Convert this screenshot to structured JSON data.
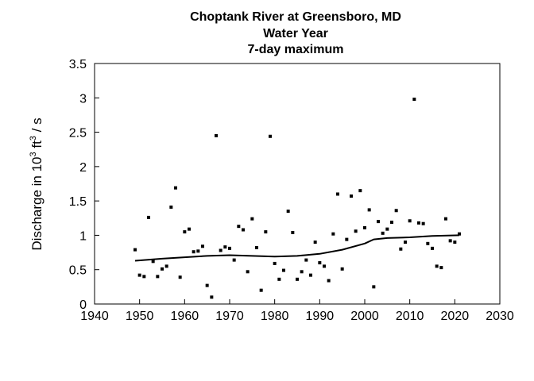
{
  "chart_data": {
    "type": "scatter",
    "title": "Choptank River at Greensboro, MD",
    "subtitle": "Water Year",
    "subtitle2": "7-day maximum",
    "xlabel": "",
    "ylabel": {
      "prefix": "Discharge in 10",
      "exponent": "3",
      "unit": " ft",
      "unit_exponent": "3",
      "suffix": " / s"
    },
    "xlim": [
      1940,
      2030
    ],
    "ylim": [
      0,
      3.5
    ],
    "xticks": [
      1940,
      1950,
      1960,
      1970,
      1980,
      1990,
      2000,
      2010,
      2020,
      2030
    ],
    "yticks": [
      0,
      0.5,
      1,
      1.5,
      2,
      2.5,
      3,
      3.5
    ],
    "yticklabels": [
      "0",
      "0.5",
      "1",
      "1.5",
      "2",
      "2.5",
      "3",
      "3.5"
    ],
    "grid": false,
    "series": [
      {
        "kind": "points",
        "marker": "square",
        "color": "#000000",
        "x": [
          1949,
          1950,
          1951,
          1952,
          1953,
          1954,
          1955,
          1956,
          1957,
          1958,
          1959,
          1960,
          1961,
          1962,
          1963,
          1964,
          1965,
          1966,
          1967,
          1968,
          1969,
          1970,
          1971,
          1972,
          1973,
          1974,
          1975,
          1976,
          1977,
          1978,
          1979,
          1980,
          1981,
          1982,
          1983,
          1984,
          1985,
          1986,
          1987,
          1988,
          1989,
          1990,
          1991,
          1992,
          1993,
          1994,
          1995,
          1996,
          1997,
          1998,
          1999,
          2000,
          2001,
          2002,
          2003,
          2004,
          2005,
          2006,
          2007,
          2008,
          2009,
          2010,
          2011,
          2012,
          2013,
          2014,
          2015,
          2016,
          2017,
          2018,
          2019,
          2020,
          2021
        ],
        "y": [
          0.79,
          0.42,
          0.4,
          1.26,
          0.62,
          0.4,
          0.51,
          0.55,
          1.41,
          1.69,
          0.39,
          1.05,
          1.09,
          0.76,
          0.77,
          0.84,
          0.27,
          0.1,
          2.45,
          0.78,
          0.83,
          0.81,
          0.64,
          1.13,
          1.08,
          0.47,
          1.24,
          0.82,
          0.2,
          1.05,
          2.44,
          0.59,
          0.36,
          0.49,
          1.35,
          1.04,
          0.36,
          0.47,
          0.64,
          0.42,
          0.9,
          0.6,
          0.55,
          0.34,
          1.02,
          1.6,
          0.51,
          0.94,
          1.57,
          1.06,
          1.65,
          1.11,
          1.37,
          0.25,
          1.2,
          1.03,
          1.09,
          1.19,
          1.36,
          0.8,
          0.9,
          1.21,
          2.98,
          1.18,
          1.17,
          0.88,
          0.81,
          0.55,
          0.53,
          1.24,
          0.92,
          0.9,
          1.02
        ]
      },
      {
        "kind": "smooth-line",
        "color": "#000000",
        "x": [
          1949,
          1955,
          1960,
          1965,
          1970,
          1975,
          1980,
          1985,
          1990,
          1995,
          2000,
          2002,
          2005,
          2010,
          2015,
          2021
        ],
        "y": [
          0.63,
          0.66,
          0.68,
          0.7,
          0.71,
          0.7,
          0.69,
          0.7,
          0.73,
          0.79,
          0.88,
          0.94,
          0.96,
          0.97,
          0.99,
          1.0
        ]
      }
    ]
  }
}
